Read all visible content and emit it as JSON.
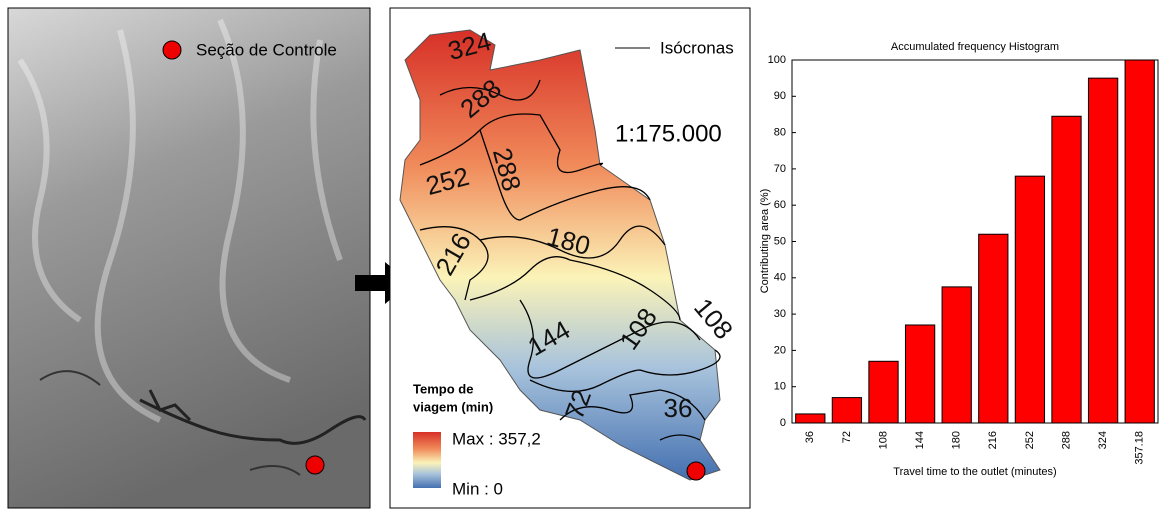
{
  "chart_data": {
    "type": "bar",
    "title": "Accumulated frequency Histogram",
    "x_label": "Travel time to the outlet (minutes)",
    "y_label": "Contributing area (%)",
    "categories": [
      "36",
      "72",
      "108",
      "144",
      "180",
      "216",
      "252",
      "288",
      "324",
      "357.18"
    ],
    "values": [
      2.5,
      7,
      17,
      27,
      37.5,
      52,
      68,
      84.5,
      95,
      100
    ],
    "color": "#ff0000",
    "ylim": [
      0,
      100
    ],
    "yticks": [
      0,
      10,
      20,
      30,
      40,
      50,
      60,
      70,
      80,
      90,
      100
    ],
    "grid": false
  },
  "dem_map": {
    "legend_label": "Seção de Controle"
  },
  "isochrone_map": {
    "legend_label": "Isócronas",
    "scale": "1:175.000",
    "legend_title": [
      "Tempo de",
      "viagem (min)"
    ],
    "max_label": "Max : 357,2",
    "min_label": "Min : 0",
    "isochrone_labels": [
      "324",
      "288",
      "288",
      "252",
      "216",
      "180",
      "144",
      "108",
      "108",
      "72",
      "36"
    ]
  }
}
